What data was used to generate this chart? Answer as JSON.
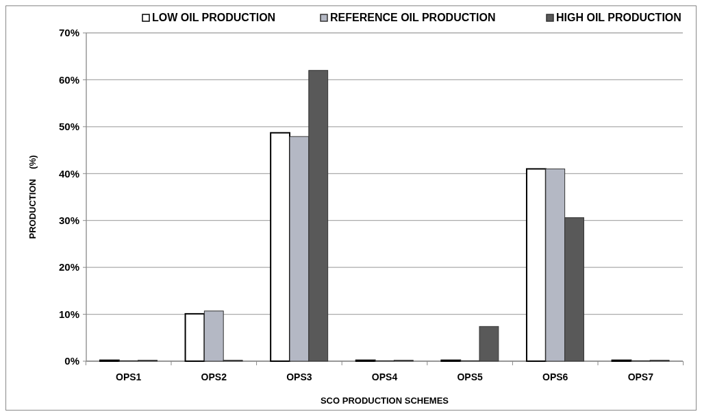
{
  "chart_data": {
    "type": "bar",
    "xlabel": "SCO PRODUCTION  SCHEMES",
    "ylabel": "PRODUCTION    (%)",
    "categories": [
      "OPS1",
      "OPS2",
      "OPS3",
      "OPS4",
      "OPS5",
      "OPS6",
      "OPS7"
    ],
    "series": [
      {
        "name": "LOW OIL PRODUCTION",
        "color": "#ffffff",
        "values": [
          0.2,
          10.1,
          48.7,
          0.2,
          0.2,
          41.0,
          0.2
        ]
      },
      {
        "name": "REFERENCE OIL PRODUCTION",
        "color": "#b4b8c4",
        "values": [
          0.1,
          10.7,
          47.9,
          0.1,
          0.1,
          41.0,
          0.1
        ]
      },
      {
        "name": "HIGH OIL PRODUCTION",
        "color": "#595959",
        "values": [
          0.2,
          0.2,
          62.0,
          0.2,
          7.4,
          30.6,
          0.2
        ]
      }
    ],
    "ylim": [
      0,
      70
    ],
    "yticks": [
      {
        "value": 0,
        "label": "0%"
      },
      {
        "value": 10,
        "label": "10%"
      },
      {
        "value": 20,
        "label": "20%"
      },
      {
        "value": 30,
        "label": "30%"
      },
      {
        "value": 40,
        "label": "40%"
      },
      {
        "value": 50,
        "label": "50%"
      },
      {
        "value": 60,
        "label": "60%"
      },
      {
        "value": 70,
        "label": "70%"
      }
    ],
    "grid": "y",
    "legend": "top"
  }
}
